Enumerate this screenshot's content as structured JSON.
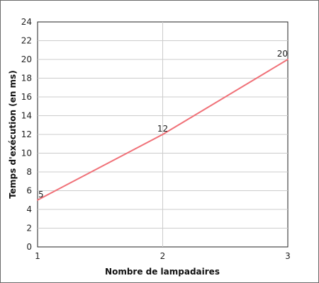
{
  "chart_data": {
    "type": "line",
    "x": [
      1,
      2,
      3
    ],
    "series": [
      {
        "values": [
          5,
          12,
          20
        ],
        "color": "#f07178"
      }
    ],
    "data_labels": [
      "5",
      "12",
      "20"
    ],
    "xlabel": "Nombre de lampadaires",
    "ylabel": "Temps d'exécution (en ms)",
    "xlim": [
      1,
      3
    ],
    "ylim": [
      0,
      24
    ],
    "x_ticks": [
      "1",
      "2",
      "3"
    ],
    "y_ticks": [
      "0",
      "2",
      "4",
      "6",
      "8",
      "10",
      "12",
      "14",
      "16",
      "18",
      "20",
      "22",
      "24"
    ],
    "grid": true,
    "legend": "none"
  }
}
